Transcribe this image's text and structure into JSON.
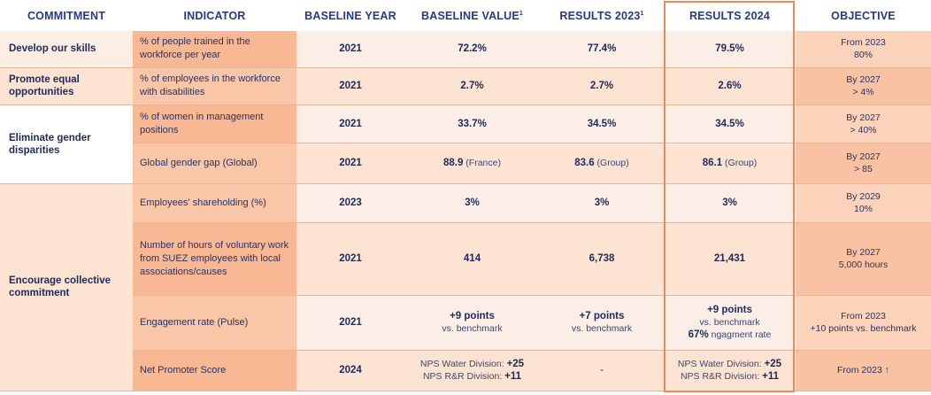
{
  "headers": {
    "commitment": "COMMITMENT",
    "indicator": "INDICATOR",
    "baseline_year": "BASELINE YEAR",
    "baseline_value": "BASELINE VALUE",
    "baseline_value_sup": "1",
    "results_2023": "RESULTS 2023",
    "results_2023_sup": "1",
    "results_2024": "RESULTS 2024",
    "objective": "OBJECTIVE"
  },
  "rows": [
    {
      "commitment": "Develop our skills",
      "indicator": "% of people trained in the workforce per year",
      "year": "2021",
      "baseline": "72.2%",
      "r2023": "77.4%",
      "r2024": "79.5%",
      "obj1": "From 2023",
      "obj2": "80%"
    },
    {
      "commitment": "Promote equal opportunities",
      "indicator": "% of employees in the workforce with disabilities",
      "year": "2021",
      "baseline": "2.7%",
      "r2023": "2.7%",
      "r2024": "2.6%",
      "obj1": "By 2027",
      "obj2": "> 4%"
    },
    {
      "commitment": "Eliminate gender disparities",
      "indicator": "% of women in management positions",
      "year": "2021",
      "baseline": "33.7%",
      "r2023": "34.5%",
      "r2024": "34.5%",
      "obj1": "By 2027",
      "obj2": "> 40%"
    },
    {
      "indicator": "Global gender gap (Global)",
      "year": "2021",
      "baseline": "88.9",
      "baseline_note": " (France)",
      "r2023": "83.6",
      "r2023_note": " (Group)",
      "r2024": "86.1",
      "r2024_note": " (Group)",
      "obj1": "By 2027",
      "obj2": "> 85"
    },
    {
      "commitment": "Encourage collective commitment",
      "indicator": "Employees' shareholding (%)",
      "year": "2023",
      "baseline": "3%",
      "r2023": "3%",
      "r2024": "3%",
      "obj1": "By 2029",
      "obj2": "10%"
    },
    {
      "indicator": "Number of hours of voluntary work from SUEZ employees with local associations/causes",
      "year": "2021",
      "baseline": "414",
      "r2023": "6,738",
      "r2024": "21,431",
      "obj1": "By 2027",
      "obj2": "5,000 hours"
    },
    {
      "indicator": "Engagement rate (Pulse)",
      "year": "2021",
      "baseline": "+9 points",
      "baseline_note": "vs. benchmark",
      "r2023": "+7 points",
      "r2023_note": "vs. benchmark",
      "r2024": "+9 points",
      "r2024_note": "vs. benchmark",
      "r2024_extra_bold": "67%",
      "r2024_extra": " ngagment rate",
      "obj1": "From 2023",
      "obj2": "+10 points vs. benchmark"
    },
    {
      "indicator": "Net Promoter Score",
      "year": "2024",
      "baseline_l1": "NPS Water Division: ",
      "baseline_v1": "+25",
      "baseline_l2": "NPS R&R Division: ",
      "baseline_v2": "+11",
      "r2023": "-",
      "r2024_l1": "NPS Water Division: ",
      "r2024_v1": "+25",
      "r2024_l2": "NPS R&R Division: ",
      "r2024_v2": "+11",
      "obj1": "From 2023 ↑"
    }
  ]
}
